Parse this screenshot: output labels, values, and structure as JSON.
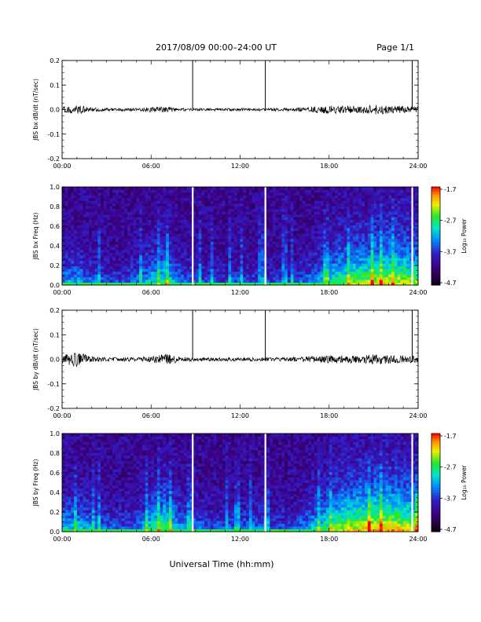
{
  "header": {
    "title": "2017/08/09  00:00–24:00 UT",
    "page": "Page 1/1"
  },
  "xlabel": "Universal Time (hh:mm)",
  "x_ticks": [
    "00:00",
    "06:00",
    "12:00",
    "18:00",
    "24:00"
  ],
  "colorbar": {
    "label": "Log₁₀ Power",
    "range": [
      -4.7,
      -1.7
    ],
    "ticks": [
      "-1.7",
      "-2.7",
      "-3.7",
      "-4.7"
    ]
  },
  "chart_data": [
    {
      "type": "line",
      "ylabel": "JBS bx dB/dt (nT/sec)",
      "xlim": [
        0,
        24
      ],
      "ylim": [
        -0.2,
        0.2
      ],
      "y_ticks": [
        "0.2",
        "0.1",
        "0.0",
        "-0.1",
        "-0.2"
      ],
      "x_hours": [
        0,
        1,
        2,
        3,
        4,
        5,
        6,
        7,
        8,
        9,
        10,
        11,
        12,
        13,
        14,
        15,
        16,
        17,
        18,
        19,
        20,
        21,
        22,
        23,
        24
      ],
      "amplitude": [
        0.012,
        0.018,
        0.008,
        0.006,
        0.006,
        0.006,
        0.01,
        0.012,
        0.006,
        0.005,
        0.005,
        0.005,
        0.006,
        0.006,
        0.006,
        0.006,
        0.008,
        0.014,
        0.018,
        0.016,
        0.014,
        0.02,
        0.016,
        0.014,
        0.012
      ],
      "spikes_hours": [
        8.8,
        13.7,
        23.6
      ],
      "spike_top": 0.2
    },
    {
      "type": "heatmap",
      "ylabel": "JBS bx Freq (Hz)",
      "xlim": [
        0,
        24
      ],
      "ylim": [
        0.0,
        1.0
      ],
      "y_ticks": [
        "1.0",
        "0.8",
        "0.6",
        "0.4",
        "0.2",
        "0.0"
      ],
      "gaps_hours": [
        8.8,
        13.7,
        23.6
      ],
      "activity_hours": [
        0,
        1,
        2,
        3,
        4,
        5,
        6,
        7,
        8,
        9,
        10,
        11,
        12,
        13,
        14,
        15,
        16,
        17,
        18,
        19,
        20,
        21,
        22,
        23,
        24
      ],
      "activity": [
        0.35,
        0.4,
        0.3,
        0.25,
        0.2,
        0.3,
        0.45,
        0.55,
        0.3,
        0.25,
        0.2,
        0.2,
        0.25,
        0.2,
        0.2,
        0.2,
        0.25,
        0.35,
        0.5,
        0.6,
        0.65,
        0.7,
        0.75,
        0.7,
        0.65
      ]
    },
    {
      "type": "line",
      "ylabel": "JBS by dB/dt (nT/sec)",
      "xlim": [
        0,
        24
      ],
      "ylim": [
        -0.2,
        0.2
      ],
      "y_ticks": [
        "0.2",
        "0.1",
        "0.0",
        "-0.1",
        "-0.2"
      ],
      "x_hours": [
        0,
        1,
        2,
        3,
        4,
        5,
        6,
        7,
        8,
        9,
        10,
        11,
        12,
        13,
        14,
        15,
        16,
        17,
        18,
        19,
        20,
        21,
        22,
        23,
        24
      ],
      "amplitude": [
        0.018,
        0.03,
        0.012,
        0.008,
        0.008,
        0.008,
        0.012,
        0.022,
        0.01,
        0.007,
        0.007,
        0.007,
        0.008,
        0.008,
        0.007,
        0.008,
        0.01,
        0.014,
        0.016,
        0.016,
        0.015,
        0.022,
        0.018,
        0.016,
        0.015
      ],
      "spikes_hours": [
        8.8,
        13.7,
        23.6
      ],
      "spike_top": 0.2
    },
    {
      "type": "heatmap",
      "ylabel": "JBS by Freq (Hz)",
      "xlim": [
        0,
        24
      ],
      "ylim": [
        0.0,
        1.0
      ],
      "y_ticks": [
        "1.0",
        "0.8",
        "0.6",
        "0.4",
        "0.2",
        "0.0"
      ],
      "gaps_hours": [
        8.8,
        13.7,
        23.6
      ],
      "activity_hours": [
        0,
        1,
        2,
        3,
        4,
        5,
        6,
        7,
        8,
        9,
        10,
        11,
        12,
        13,
        14,
        15,
        16,
        17,
        18,
        19,
        20,
        21,
        22,
        23,
        24
      ],
      "activity": [
        0.4,
        0.45,
        0.35,
        0.3,
        0.25,
        0.3,
        0.5,
        0.65,
        0.35,
        0.3,
        0.25,
        0.25,
        0.3,
        0.3,
        0.25,
        0.25,
        0.3,
        0.45,
        0.6,
        0.7,
        0.75,
        0.8,
        0.8,
        0.75,
        0.7
      ]
    }
  ]
}
